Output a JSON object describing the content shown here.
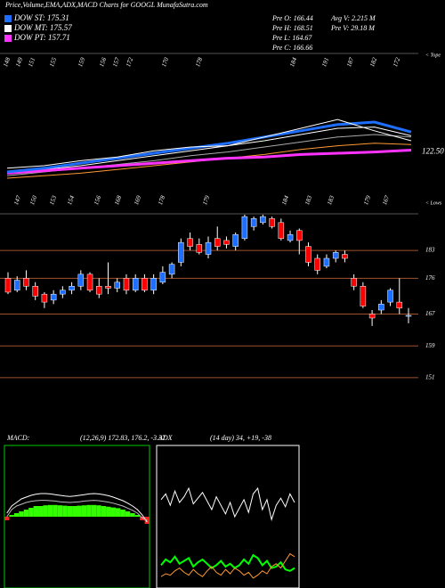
{
  "title": "Price,Volume,EMA,ADX,MACD Charts for GOOGL MunafaSutra.com",
  "info": [
    "Pre O: 166.44",
    "Pre H: 168.51",
    "Pre L: 164.67",
    "Pre C: 166.66",
    "Avg V: 2.215 M",
    "Pre V: 29.18 M"
  ],
  "legend": [
    {
      "name": "DOW ST: 175.31",
      "color": "#1e6fff"
    },
    {
      "name": "DOW MT: 175.57",
      "color": "#ffffff"
    },
    {
      "name": "DOW PT: 157.71",
      "color": "#ff33ff"
    }
  ],
  "chart_data": [
    {
      "type": "line",
      "ylim": [
        100,
        200
      ],
      "marker": "< Tope",
      "end_label": "122.50",
      "high_labels": [
        148,
        149,
        151,
        155,
        159,
        156,
        157,
        172,
        170,
        178,
        184,
        191,
        187,
        182,
        172
      ],
      "series": [
        {
          "color": "#ff9933",
          "width": 1,
          "values": [
            100,
            102,
            104,
            107,
            110,
            113,
            116,
            119,
            123,
            126,
            128,
            127
          ]
        },
        {
          "color": "#aaaaaa",
          "width": 1,
          "values": [
            102,
            105,
            108,
            111,
            114,
            118,
            121,
            125,
            129,
            133,
            135,
            133
          ]
        },
        {
          "color": "#ffffff",
          "width": 1,
          "values": [
            104,
            107,
            110,
            114,
            118,
            122,
            126,
            130,
            135,
            140,
            141,
            134
          ]
        },
        {
          "color": "#ff33ff",
          "width": 3,
          "values": [
            104,
            106,
            108,
            110,
            112,
            114,
            116,
            117,
            119,
            120,
            121,
            122.5
          ]
        },
        {
          "color": "#1e6fff",
          "width": 3,
          "values": [
            105,
            108,
            112,
            116,
            120,
            124,
            128,
            133,
            138,
            143,
            145,
            137
          ]
        },
        {
          "color": "#ffffff",
          "width": 1,
          "values": [
            108,
            110,
            114,
            117,
            122,
            125,
            126,
            133,
            140,
            147,
            138,
            130
          ]
        }
      ]
    },
    {
      "type": "candlestick",
      "ylim": [
        147.4,
        192.2
      ],
      "yticks": [
        183,
        176,
        167,
        159,
        151
      ],
      "marker": "< Lows",
      "low_labels": [
        147,
        150,
        153,
        154,
        156,
        168,
        169,
        178,
        179,
        184,
        183,
        183,
        179,
        167
      ],
      "open": [
        176,
        173,
        176,
        174,
        172,
        170.5,
        172,
        173,
        174,
        177,
        174,
        174,
        173.5,
        176,
        173,
        176,
        173,
        175,
        177,
        180,
        186,
        184.5,
        182,
        186,
        185.5,
        184,
        186,
        189,
        190,
        191,
        190,
        185.5,
        188,
        184,
        181,
        179,
        181,
        182,
        176,
        174,
        167,
        168,
        170,
        170,
        166.44
      ],
      "close": [
        172.5,
        175.5,
        174,
        171.5,
        170,
        172,
        173,
        174,
        177,
        173,
        172,
        173.5,
        175,
        173,
        176,
        173,
        176,
        177.5,
        179.5,
        185,
        184,
        182.5,
        185,
        184,
        184.5,
        187,
        191.5,
        191,
        191.5,
        189,
        186,
        187,
        185.5,
        180,
        178,
        181,
        182.5,
        181,
        174,
        169,
        166,
        169.5,
        173,
        168.5,
        166.66
      ],
      "high": [
        177.5,
        176.5,
        178,
        175,
        172.5,
        173,
        174,
        175,
        178,
        177.5,
        176,
        180,
        176,
        177,
        177,
        177,
        177,
        179,
        180,
        186,
        187.5,
        186,
        186.5,
        189,
        186.5,
        187.5,
        192,
        191.5,
        192,
        191.5,
        191,
        188,
        188.5,
        185,
        182,
        182,
        183,
        183,
        177,
        175,
        168,
        170.5,
        173.5,
        176,
        168.51
      ],
      "low": [
        172,
        172.5,
        173,
        170.5,
        168.5,
        169.5,
        171,
        172,
        173,
        172.5,
        171,
        172,
        172.5,
        172,
        172.5,
        172.5,
        172,
        174.5,
        176,
        179,
        183,
        182,
        181,
        183,
        183.5,
        183,
        185.5,
        188,
        189.5,
        188.5,
        185.5,
        185,
        182,
        179,
        177,
        178.5,
        180,
        180,
        173,
        168.5,
        164,
        167,
        169,
        167,
        164.67
      ]
    },
    {
      "type": "macd",
      "title": "MACD:",
      "params": "(12,26,9) 172.83, 176.2, -3.37",
      "ylim": [
        -20,
        20
      ],
      "hist": [
        -1,
        0.5,
        1,
        1.5,
        2,
        2.5,
        3,
        3,
        3.2,
        3.3,
        3.3,
        3.2,
        3.1,
        3,
        3,
        3.1,
        3.2,
        3.3,
        3.3,
        3.2,
        3,
        2.8,
        2.6,
        2.4,
        2,
        1.5,
        1,
        0.5,
        -1,
        -2
      ],
      "series": [
        {
          "color": "#ffffff",
          "values": [
            1,
            3,
            4,
            5,
            5.5,
            6,
            6.3,
            6.5,
            6.5,
            6.4,
            6.2,
            6,
            5.8,
            5.7,
            5.8,
            6,
            6.2,
            6.4,
            6.5,
            6.4,
            6.2,
            5.9,
            5.5,
            5,
            4.5,
            3.8,
            3,
            2,
            0.5,
            -1.5
          ]
        },
        {
          "color": "#bbbbbb",
          "values": [
            0,
            2,
            3,
            3.5,
            4,
            4.3,
            4.5,
            4.6,
            4.6,
            4.5,
            4.4,
            4.2,
            4.1,
            4,
            4.1,
            4.2,
            4.4,
            4.5,
            4.6,
            4.5,
            4.3,
            4.1,
            3.8,
            3.4,
            3,
            2.4,
            1.8,
            1,
            -0.3,
            -1
          ]
        }
      ]
    },
    {
      "type": "adx",
      "title": "ADX",
      "params": "(14 day) 34, +19, -38",
      "ylim": [
        0,
        100
      ],
      "series": [
        {
          "color": "#ffffff",
          "values": [
            62,
            66,
            58,
            68,
            60,
            64,
            70,
            59,
            63,
            67,
            61,
            55,
            64,
            58,
            52,
            60,
            50,
            56,
            62,
            53,
            66,
            70,
            55,
            62,
            48,
            58,
            63,
            57,
            66,
            60
          ]
        },
        {
          "color": "#00ff00",
          "values": [
            16,
            20,
            18,
            22,
            17,
            19,
            21,
            15,
            18,
            20,
            17,
            14,
            16,
            19,
            15,
            17,
            14,
            16,
            20,
            17,
            23,
            21,
            16,
            19,
            14,
            15,
            18,
            13,
            12,
            14
          ]
        },
        {
          "color": "#ff9933",
          "values": [
            8,
            10,
            9,
            12,
            14,
            11,
            9,
            13,
            10,
            8,
            12,
            15,
            11,
            9,
            13,
            10,
            14,
            12,
            9,
            11,
            7,
            9,
            12,
            10,
            15,
            17,
            14,
            19,
            24,
            22
          ]
        }
      ]
    }
  ]
}
